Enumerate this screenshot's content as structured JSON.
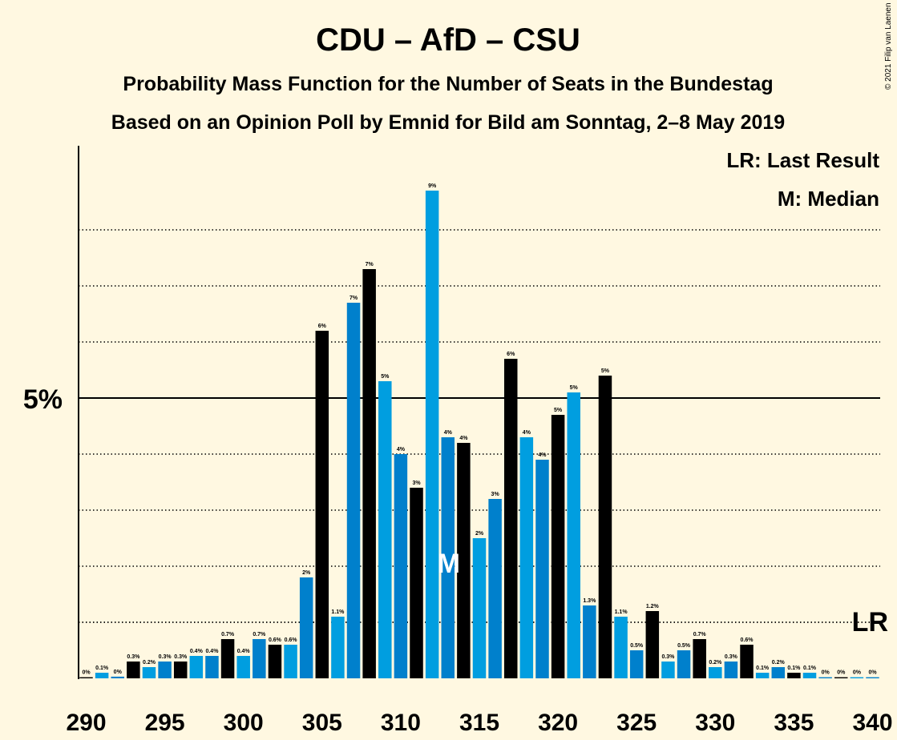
{
  "chart_data": {
    "type": "bar",
    "title": "CDU – AfD – CSU",
    "subtitle1": "Probability Mass Function for the Number of Seats in the Bundestag",
    "subtitle2": "Based on an Opinion Poll by Emnid for Bild am Sonntag, 2–8 May 2019",
    "copyright": "© 2021 Filip van Laenen",
    "legend": {
      "lr": "LR: Last Result",
      "m": "M: Median"
    },
    "y_tick_label": "5%",
    "lr_label": "LR",
    "median_label": "M",
    "median_seat": 313,
    "last_result_seat": 340,
    "x_ticks": [
      "290",
      "295",
      "300",
      "305",
      "310",
      "315",
      "320",
      "325",
      "330",
      "335",
      "340"
    ],
    "seats": [
      290,
      291,
      292,
      293,
      294,
      295,
      296,
      297,
      298,
      299,
      300,
      301,
      302,
      303,
      304,
      305,
      306,
      307,
      308,
      309,
      310,
      311,
      312,
      313,
      314,
      315,
      316,
      317,
      318,
      319,
      320,
      321,
      322,
      323,
      324,
      325,
      326,
      327,
      328,
      329,
      330,
      331,
      332,
      333,
      334,
      335,
      336,
      337,
      338,
      339,
      340
    ],
    "values": [
      0.02,
      0.1,
      0.03,
      0.3,
      0.2,
      0.3,
      0.3,
      0.4,
      0.4,
      0.7,
      0.4,
      0.7,
      0.6,
      0.6,
      1.8,
      6.2,
      1.1,
      6.7,
      7.3,
      5.3,
      4.0,
      3.4,
      8.7,
      4.3,
      4.2,
      2.5,
      3.2,
      5.7,
      4.3,
      3.9,
      4.7,
      5.1,
      1.3,
      5.4,
      1.1,
      0.5,
      1.2,
      0.3,
      0.5,
      0.7,
      0.2,
      0.3,
      0.6,
      0.1,
      0.2,
      0.1,
      0.1,
      0.02,
      0.02,
      0.02,
      0.02
    ],
    "labels": [
      "0%",
      "0.1%",
      "0%",
      "0.3%",
      "0.2%",
      "0.3%",
      "0.3%",
      "0.4%",
      "0.4%",
      "0.7%",
      "0.4%",
      "0.7%",
      "0.6%",
      "0.6%",
      "2%",
      "6%",
      "1.1%",
      "7%",
      "7%",
      "5%",
      "4%",
      "3%",
      "9%",
      "4%",
      "4%",
      "2%",
      "3%",
      "6%",
      "4%",
      "4%",
      "5%",
      "5%",
      "1.3%",
      "5%",
      "1.1%",
      "0.5%",
      "1.2%",
      "0.3%",
      "0.5%",
      "0.7%",
      "0.2%",
      "0.3%",
      "0.6%",
      "0.1%",
      "0.2%",
      "0.1%",
      "0.1%",
      "0%",
      "0%",
      "0%",
      "0%"
    ],
    "ylim": [
      0,
      9.5
    ],
    "grid": "dotted horizontal lines at each 1%, solid line at 5%",
    "colors": {
      "background": "#FFF8E1",
      "bar_light_blue": "#009EE0",
      "bar_dark_blue": "#0080CC",
      "bar_black": "#000000"
    }
  }
}
